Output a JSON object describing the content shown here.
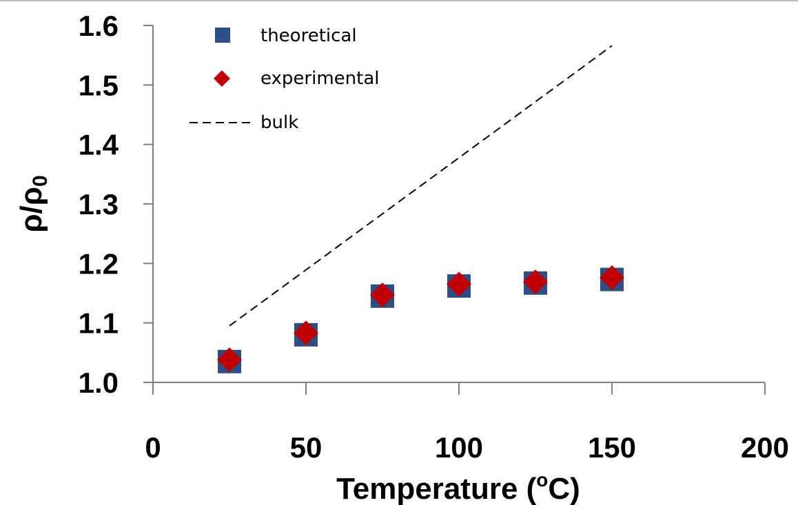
{
  "chart_data": {
    "type": "scatter",
    "title": "",
    "xlabel": {
      "main": "Temperature (",
      "sup": "o",
      "tail": "C)"
    },
    "ylabel": {
      "main": "ρ/ρ",
      "sub": "0"
    },
    "xlim": [
      0,
      200
    ],
    "ylim": [
      1.0,
      1.6
    ],
    "xticks": [
      0,
      50,
      100,
      150,
      200
    ],
    "xtick_labels": [
      "0",
      "50",
      "100",
      "150",
      "200"
    ],
    "yticks": [
      1.0,
      1.1,
      1.2,
      1.3,
      1.4,
      1.5,
      1.6
    ],
    "ytick_labels": [
      "1.0",
      "1.1",
      "1.2",
      "1.3",
      "1.4",
      "1.5",
      "1.6"
    ],
    "grid": false,
    "legend_position": "top-left",
    "series": [
      {
        "name": "theoretical",
        "marker": "square",
        "color": "#2b4f86",
        "x": [
          25,
          50,
          75,
          100,
          125,
          150
        ],
        "y": [
          1.035,
          1.08,
          1.145,
          1.162,
          1.167,
          1.173
        ]
      },
      {
        "name": "experimental",
        "marker": "diamond",
        "color": "#c00000",
        "x": [
          25,
          50,
          75,
          100,
          125,
          150
        ],
        "y": [
          1.038,
          1.083,
          1.147,
          1.165,
          1.169,
          1.176
        ]
      },
      {
        "name": "bulk",
        "marker": "dashed-line",
        "color": "#000000",
        "x": [
          25,
          150
        ],
        "y": [
          1.095,
          1.566
        ]
      }
    ]
  }
}
